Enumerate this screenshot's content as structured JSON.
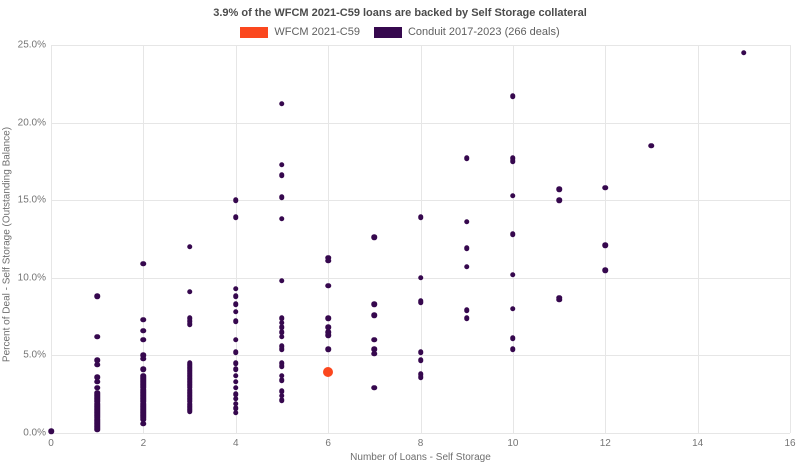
{
  "title": "3.9% of the WFCM 2021-C59 loans are backed by Self Storage collateral",
  "legend": [
    {
      "label": "WFCM 2021-C59",
      "color": "#fb471e"
    },
    {
      "label": "Conduit 2017-2023 (266 deals)",
      "color": "#36084e"
    }
  ],
  "chart_data": {
    "type": "scatter",
    "title": "3.9% of the WFCM 2021-C59 loans are backed by Self Storage collateral",
    "xlabel": "Number of Loans - Self Storage",
    "ylabel": "Percent of Deal - Self Storage (Outstanding Balance)",
    "xlim": [
      0,
      16
    ],
    "ylim": [
      0,
      25
    ],
    "grid": true,
    "legend_position": "top-center",
    "x_ticks": [
      {
        "v": 0,
        "label": "0"
      },
      {
        "v": 2,
        "label": "2"
      },
      {
        "v": 4,
        "label": "4"
      },
      {
        "v": 6,
        "label": "6"
      },
      {
        "v": 8,
        "label": "8"
      },
      {
        "v": 10,
        "label": "10"
      },
      {
        "v": 12,
        "label": "12"
      },
      {
        "v": 14,
        "label": "14"
      },
      {
        "v": 16,
        "label": "16"
      }
    ],
    "y_ticks": [
      {
        "v": 0,
        "label": "0.0%"
      },
      {
        "v": 5,
        "label": "5.0%"
      },
      {
        "v": 10,
        "label": "10.0%"
      },
      {
        "v": 15,
        "label": "15.0%"
      },
      {
        "v": 20,
        "label": "20.0%"
      },
      {
        "v": 25,
        "label": "25.0%"
      }
    ],
    "series": [
      {
        "name": "WFCM 2021-C59",
        "color": "#fb471e",
        "dot_size": 10,
        "points": [
          [
            6,
            3.9
          ]
        ]
      },
      {
        "name": "Conduit 2017-2023 (266 deals)",
        "color": "#36084e",
        "dot_size": 5.5,
        "points": [
          [
            0,
            0.1
          ],
          [
            1,
            8.8
          ],
          [
            1,
            6.2
          ],
          [
            1,
            4.7
          ],
          [
            1,
            4.4
          ],
          [
            1,
            3.6
          ],
          [
            1,
            3.3
          ],
          [
            1,
            2.9
          ],
          [
            1,
            2.6
          ],
          [
            1,
            2.5
          ],
          [
            1,
            2.4
          ],
          [
            1,
            2.3
          ],
          [
            1,
            2.2
          ],
          [
            1,
            2.1
          ],
          [
            1,
            2.0
          ],
          [
            1,
            1.9
          ],
          [
            1,
            1.8
          ],
          [
            1,
            1.7
          ],
          [
            1,
            1.6
          ],
          [
            1,
            1.5
          ],
          [
            1,
            1.4
          ],
          [
            1,
            1.3
          ],
          [
            1,
            1.2
          ],
          [
            1,
            1.1
          ],
          [
            1,
            1.0
          ],
          [
            1,
            0.9
          ],
          [
            1,
            0.8
          ],
          [
            1,
            0.7
          ],
          [
            1,
            0.6
          ],
          [
            1,
            0.5
          ],
          [
            1,
            0.4
          ],
          [
            1,
            0.3
          ],
          [
            1,
            0.2
          ],
          [
            2,
            10.9
          ],
          [
            2,
            7.3
          ],
          [
            2,
            6.6
          ],
          [
            2,
            6.0
          ],
          [
            2,
            5.0
          ],
          [
            2,
            4.8
          ],
          [
            2,
            4.1
          ],
          [
            2,
            3.7
          ],
          [
            2,
            3.6
          ],
          [
            2,
            3.5
          ],
          [
            2,
            3.4
          ],
          [
            2,
            3.3
          ],
          [
            2,
            3.2
          ],
          [
            2,
            3.1
          ],
          [
            2,
            3.0
          ],
          [
            2,
            2.9
          ],
          [
            2,
            2.8
          ],
          [
            2,
            2.7
          ],
          [
            2,
            2.6
          ],
          [
            2,
            2.5
          ],
          [
            2,
            2.4
          ],
          [
            2,
            2.3
          ],
          [
            2,
            2.2
          ],
          [
            2,
            2.1
          ],
          [
            2,
            2.0
          ],
          [
            2,
            1.9
          ],
          [
            2,
            1.8
          ],
          [
            2,
            1.7
          ],
          [
            2,
            1.6
          ],
          [
            2,
            1.5
          ],
          [
            2,
            1.4
          ],
          [
            2,
            1.3
          ],
          [
            2,
            1.2
          ],
          [
            2,
            1.1
          ],
          [
            2,
            1.0
          ],
          [
            2,
            0.9
          ],
          [
            2,
            0.6
          ],
          [
            3,
            12.0
          ],
          [
            3,
            9.1
          ],
          [
            3,
            7.4
          ],
          [
            3,
            7.2
          ],
          [
            3,
            7.0
          ],
          [
            3,
            4.5
          ],
          [
            3,
            4.4
          ],
          [
            3,
            4.3
          ],
          [
            3,
            4.2
          ],
          [
            3,
            4.1
          ],
          [
            3,
            4.0
          ],
          [
            3,
            3.9
          ],
          [
            3,
            3.8
          ],
          [
            3,
            3.7
          ],
          [
            3,
            3.6
          ],
          [
            3,
            3.5
          ],
          [
            3,
            3.4
          ],
          [
            3,
            3.3
          ],
          [
            3,
            3.2
          ],
          [
            3,
            3.1
          ],
          [
            3,
            3.0
          ],
          [
            3,
            2.9
          ],
          [
            3,
            2.8
          ],
          [
            3,
            2.7
          ],
          [
            3,
            2.6
          ],
          [
            3,
            2.5
          ],
          [
            3,
            2.4
          ],
          [
            3,
            2.3
          ],
          [
            3,
            2.2
          ],
          [
            3,
            2.1
          ],
          [
            3,
            2.0
          ],
          [
            3,
            1.9
          ],
          [
            3,
            1.8
          ],
          [
            3,
            1.7
          ],
          [
            3,
            1.6
          ],
          [
            3,
            1.5
          ],
          [
            3,
            1.4
          ],
          [
            4,
            15.0
          ],
          [
            4,
            13.9
          ],
          [
            4,
            9.3
          ],
          [
            4,
            8.8
          ],
          [
            4,
            8.3
          ],
          [
            4,
            7.8
          ],
          [
            4,
            7.2
          ],
          [
            4,
            6.0
          ],
          [
            4,
            5.2
          ],
          [
            4,
            4.5
          ],
          [
            4,
            4.1
          ],
          [
            4,
            3.7
          ],
          [
            4,
            3.3
          ],
          [
            4,
            2.9
          ],
          [
            4,
            2.5
          ],
          [
            4,
            2.2
          ],
          [
            4,
            1.9
          ],
          [
            4,
            1.6
          ],
          [
            4,
            1.3
          ],
          [
            5,
            21.2
          ],
          [
            5,
            17.3
          ],
          [
            5,
            16.6
          ],
          [
            5,
            15.2
          ],
          [
            5,
            13.8
          ],
          [
            5,
            9.8
          ],
          [
            5,
            7.4
          ],
          [
            5,
            7.1
          ],
          [
            5,
            6.8
          ],
          [
            5,
            6.5
          ],
          [
            5,
            6.2
          ],
          [
            5,
            5.6
          ],
          [
            5,
            5.4
          ],
          [
            5,
            4.5
          ],
          [
            5,
            4.3
          ],
          [
            5,
            3.7
          ],
          [
            5,
            3.4
          ],
          [
            5,
            2.7
          ],
          [
            5,
            2.4
          ],
          [
            5,
            2.1
          ],
          [
            6,
            11.3
          ],
          [
            6,
            11.1
          ],
          [
            6,
            9.5
          ],
          [
            6,
            7.4
          ],
          [
            6,
            6.8
          ],
          [
            6,
            6.5
          ],
          [
            6,
            6.3
          ],
          [
            6,
            5.4
          ],
          [
            7,
            12.6
          ],
          [
            7,
            8.3
          ],
          [
            7,
            7.6
          ],
          [
            7,
            6.0
          ],
          [
            7,
            5.4
          ],
          [
            7,
            5.1
          ],
          [
            7,
            2.9
          ],
          [
            8,
            13.9
          ],
          [
            8,
            10.0
          ],
          [
            8,
            8.5
          ],
          [
            8,
            8.4
          ],
          [
            8,
            5.2
          ],
          [
            8,
            4.7
          ],
          [
            8,
            3.8
          ],
          [
            8,
            3.6
          ],
          [
            9,
            17.7
          ],
          [
            9,
            13.6
          ],
          [
            9,
            11.9
          ],
          [
            9,
            10.7
          ],
          [
            9,
            7.9
          ],
          [
            9,
            7.4
          ],
          [
            10,
            21.7
          ],
          [
            10,
            17.7
          ],
          [
            10,
            17.5
          ],
          [
            10,
            15.3
          ],
          [
            10,
            12.8
          ],
          [
            10,
            10.2
          ],
          [
            10,
            8.0
          ],
          [
            10,
            6.1
          ],
          [
            10,
            5.4
          ],
          [
            11,
            15.7
          ],
          [
            11,
            15.0
          ],
          [
            11,
            8.7
          ],
          [
            11,
            8.6
          ],
          [
            12,
            15.8
          ],
          [
            12,
            12.1
          ],
          [
            12,
            10.5
          ],
          [
            13,
            18.5
          ],
          [
            15,
            24.5
          ]
        ]
      }
    ]
  }
}
